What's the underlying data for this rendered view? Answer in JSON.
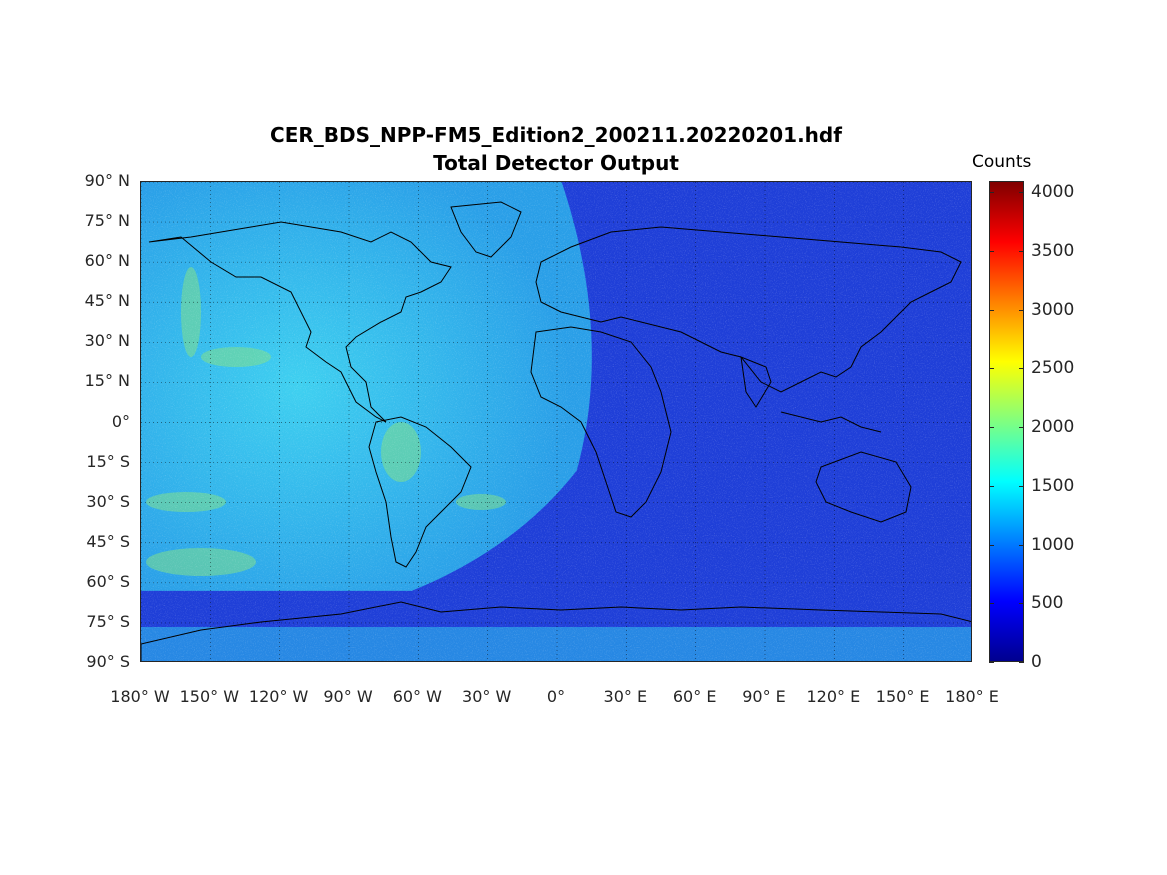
{
  "title": "CER_BDS_NPP-FM5_Edition2_200211.20220201.hdf",
  "subtitle": "Total Detector Output",
  "colorbar": {
    "title": "Counts",
    "ticks": [
      "4000",
      "3500",
      "3000",
      "2500",
      "2000",
      "1500",
      "1000",
      "500",
      "0"
    ],
    "tick_values": [
      4000,
      3500,
      3000,
      2500,
      2000,
      1500,
      1000,
      500,
      0
    ],
    "range": [
      0,
      4096
    ],
    "colormap": "jet"
  },
  "lat_labels": [
    "90° N",
    "75° N",
    "60° N",
    "45° N",
    "30° N",
    "15° N",
    "0°",
    "15° S",
    "30° S",
    "45° S",
    "60° S",
    "75° S",
    "90° S"
  ],
  "lat_values": [
    90,
    75,
    60,
    45,
    30,
    15,
    0,
    -15,
    -30,
    -45,
    -60,
    -75,
    -90
  ],
  "lon_labels": [
    "180° W",
    "150° W",
    "120° W",
    "90° W",
    "60° W",
    "30° W",
    "0°",
    "30° E",
    "60° E",
    "90° E",
    "120° E",
    "150° E",
    "180° E"
  ],
  "lon_values": [
    -180,
    -150,
    -120,
    -90,
    -60,
    -30,
    0,
    30,
    60,
    90,
    120,
    150,
    180
  ],
  "map_data": {
    "projection": "equirectangular",
    "lat_range": [
      -90,
      90
    ],
    "lon_range": [
      -180,
      180
    ],
    "gridlines": true,
    "day_side_lon_range": [
      -180,
      15
    ],
    "day_side_counts": 1400,
    "night_side_counts": 600
  },
  "colors": {
    "night": "#1f3fd8",
    "day": "#2ab8f0",
    "coast": "#000000"
  }
}
